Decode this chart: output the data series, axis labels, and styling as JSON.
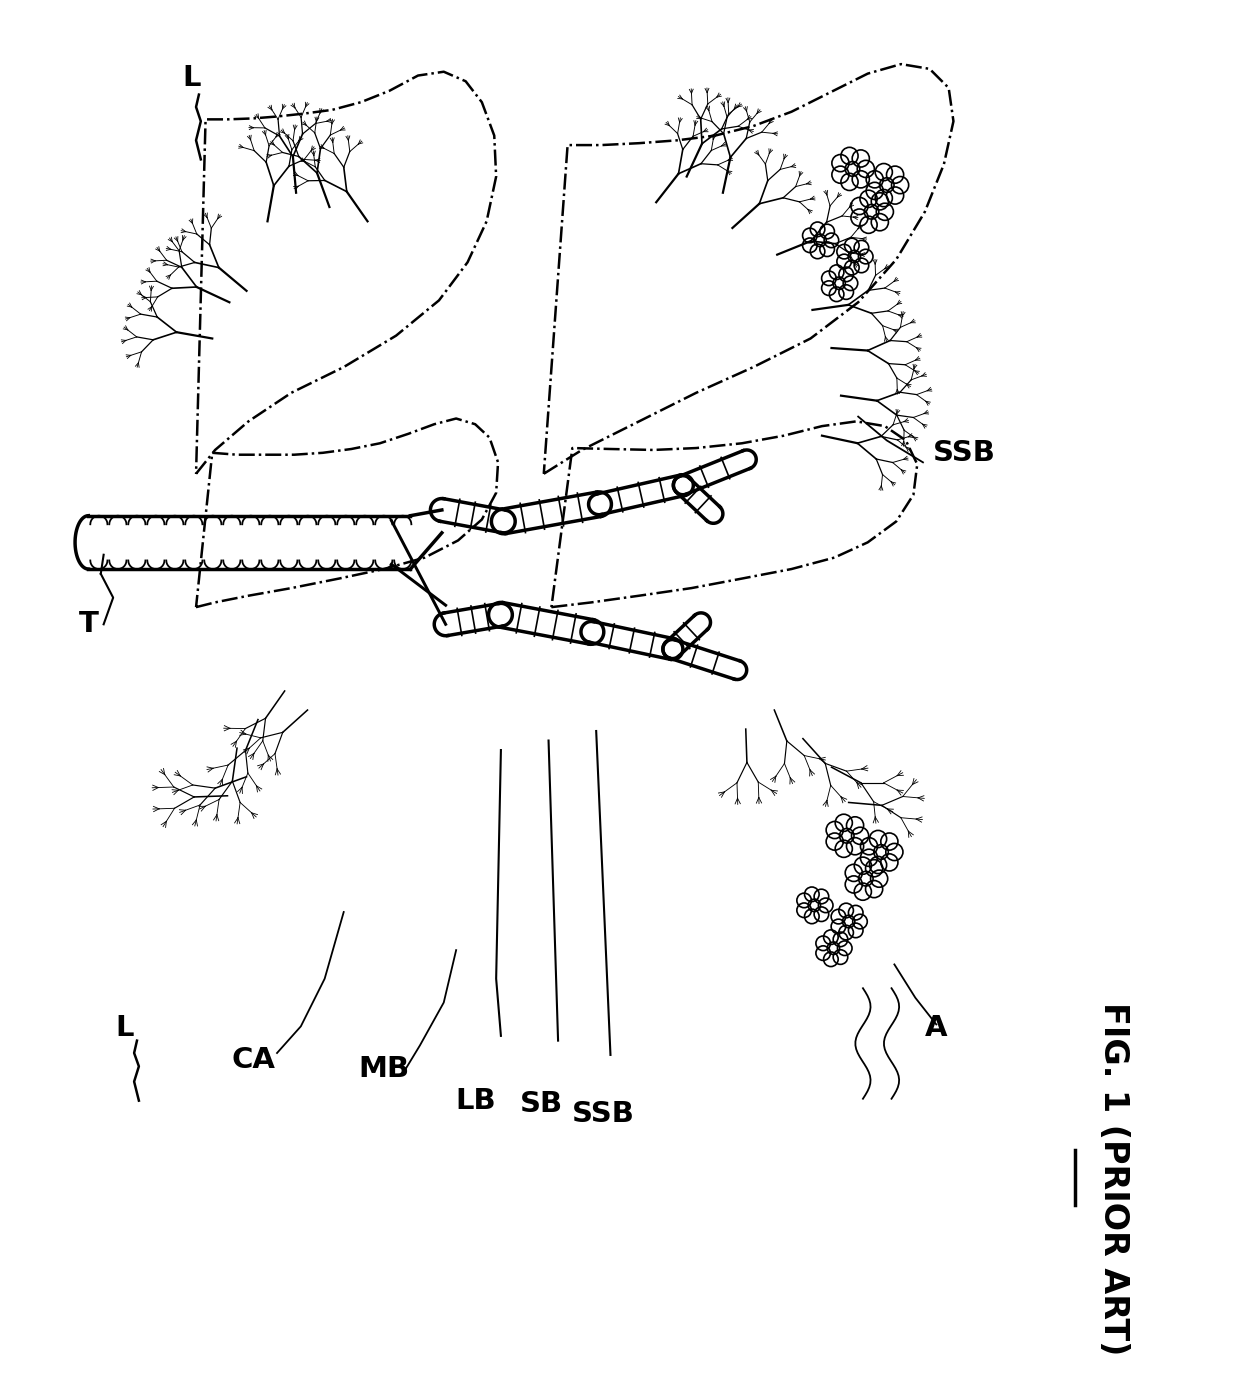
{
  "title": "FIG. 1 (PRIOR ART)",
  "labels": {
    "L_top": "L",
    "L_bottom": "L",
    "T": "T",
    "CA": "CA",
    "MB": "MB",
    "LB": "LB",
    "SB": "SB",
    "SSB_bottom": "SSB",
    "SSB_right": "SSB",
    "A": "A"
  },
  "bg_color": "#ffffff",
  "line_color": "#000000",
  "fig_width": 12.4,
  "fig_height": 13.92,
  "dpi": 100
}
